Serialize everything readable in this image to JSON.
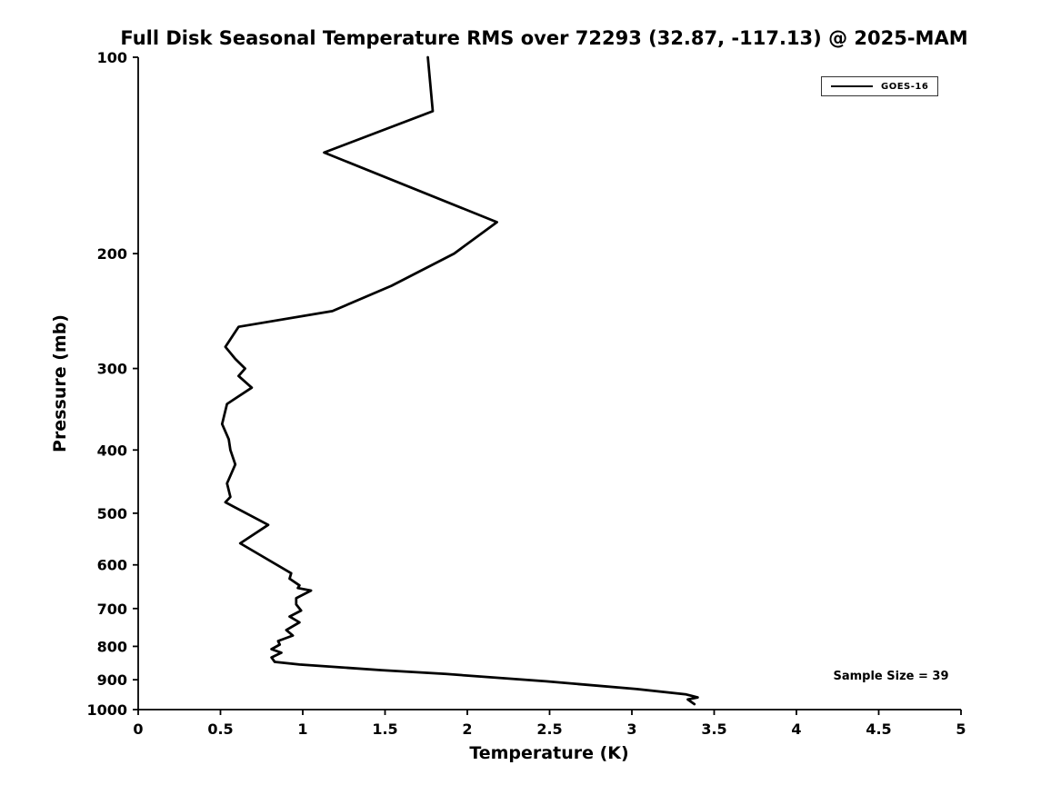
{
  "figure": {
    "background": "#ffffff",
    "legend": {
      "position": "top-right",
      "entries": [
        {
          "label": "GOES-16",
          "color": "#000000"
        }
      ]
    }
  },
  "chart_data": {
    "type": "line",
    "title": "Full Disk Seasonal Temperature RMS over 72293 (32.87, -117.13) @ 2025-MAM",
    "xlabel": "Temperature (K)",
    "ylabel": "Pressure (mb)",
    "xlim": [
      0,
      5
    ],
    "ylim": [
      100,
      1000
    ],
    "yscale": "log",
    "y_inverted": true,
    "grid": false,
    "legend_position": "top-right",
    "annotation": "Sample Size = 39",
    "xticks": [
      "0",
      "0.5",
      "1",
      "1.5",
      "2",
      "2.5",
      "3",
      "3.5",
      "4",
      "4.5",
      "5"
    ],
    "yticks": [
      "100",
      "200",
      "300",
      "400",
      "500",
      "600",
      "700",
      "800",
      "900",
      "1000"
    ],
    "series": [
      {
        "name": "GOES-16",
        "color": "#000000",
        "points_format": "[temperature_rms_K, pressure_mb]",
        "points": [
          [
            1.76,
            100
          ],
          [
            1.79,
            121
          ],
          [
            1.13,
            140
          ],
          [
            2.18,
            179
          ],
          [
            1.92,
            200
          ],
          [
            1.54,
            224
          ],
          [
            1.18,
            245
          ],
          [
            0.61,
            259
          ],
          [
            0.53,
            278
          ],
          [
            0.59,
            290
          ],
          [
            0.65,
            300
          ],
          [
            0.61,
            308
          ],
          [
            0.69,
            321
          ],
          [
            0.54,
            340
          ],
          [
            0.51,
            365
          ],
          [
            0.55,
            385
          ],
          [
            0.56,
            400
          ],
          [
            0.59,
            421
          ],
          [
            0.54,
            450
          ],
          [
            0.56,
            472
          ],
          [
            0.53,
            481
          ],
          [
            0.79,
            521
          ],
          [
            0.62,
            556
          ],
          [
            0.93,
            618
          ],
          [
            0.92,
            630
          ],
          [
            0.98,
            645
          ],
          [
            0.97,
            651
          ],
          [
            1.05,
            657
          ],
          [
            0.96,
            675
          ],
          [
            0.96,
            690
          ],
          [
            0.99,
            705
          ],
          [
            0.92,
            720
          ],
          [
            0.98,
            735
          ],
          [
            0.9,
            755
          ],
          [
            0.94,
            770
          ],
          [
            0.85,
            785
          ],
          [
            0.86,
            795
          ],
          [
            0.81,
            808
          ],
          [
            0.87,
            818
          ],
          [
            0.81,
            832
          ],
          [
            0.83,
            845
          ],
          [
            0.98,
            853
          ],
          [
            1.48,
            870
          ],
          [
            1.87,
            882
          ],
          [
            2.48,
            905
          ],
          [
            3.03,
            930
          ],
          [
            3.33,
            948
          ],
          [
            3.4,
            958
          ],
          [
            3.34,
            965
          ],
          [
            3.38,
            981
          ]
        ]
      }
    ]
  }
}
